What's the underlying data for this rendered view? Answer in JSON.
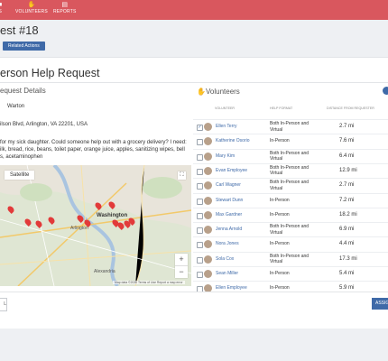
{
  "nav": {
    "items": [
      {
        "label": "S",
        "icon": "briefcase-icon"
      },
      {
        "label": "VOLUNTEERS",
        "icon": "hand-icon"
      },
      {
        "label": "REPORTS",
        "icon": "bar-chart-icon"
      }
    ]
  },
  "header": {
    "title": "est #18",
    "related_actions": "Related Actions"
  },
  "card": {
    "title": "erson Help Request"
  },
  "details": {
    "section_title": "equest Details",
    "name": "Warton",
    "address": "ilson Blvd, Arlington, VA 22201, USA",
    "request_lines": [
      "for my sick daughter. Could someone help out with a grocery delivery? I need:",
      "ilk, bread, rice, beans, toilet paper, orange juice, apples, sanitizing wipes, bell",
      "s, acetaminophen"
    ]
  },
  "map": {
    "satellite_label": "Satellite",
    "city_labels": [
      "Washington",
      "Arlington",
      "Alexandria"
    ],
    "zoom_in": "+",
    "zoom_out": "−",
    "footer": "Map data ©2020   Terms of Use   Report a map error"
  },
  "volunteers": {
    "title": "Volunteers",
    "columns": [
      "VOLUNTEER",
      "HELP FORMAT",
      "DISTANCE FROM REQUESTER"
    ],
    "rows": [
      {
        "name": "Ellen Terry",
        "format": [
          "Both In-Person and",
          "Virtual"
        ],
        "distance": "2.7 mi",
        "checked": true
      },
      {
        "name": "Katherine Osorio",
        "format": [
          "In-Person"
        ],
        "distance": "7.6 mi",
        "checked": false
      },
      {
        "name": "Mary Kim",
        "format": [
          "Both In-Person and",
          "Virtual"
        ],
        "distance": "6.4 mi",
        "checked": false
      },
      {
        "name": "Evan Employee",
        "format": [
          "Both In-Person and",
          "Virtual"
        ],
        "distance": "12.9 mi",
        "checked": false
      },
      {
        "name": "Carl Wagner",
        "format": [
          "Both In-Person and",
          "Virtual"
        ],
        "distance": "2.7 mi",
        "checked": false
      },
      {
        "name": "Stewart Dunn",
        "format": [
          "In-Person"
        ],
        "distance": "7.2 mi",
        "checked": false
      },
      {
        "name": "Max Gardner",
        "format": [
          "In-Person"
        ],
        "distance": "18.2 mi",
        "checked": false
      },
      {
        "name": "Jenna Arnold",
        "format": [
          "Both In-Person and",
          "Virtual"
        ],
        "distance": "6.9 mi",
        "checked": false
      },
      {
        "name": "Nora Jones",
        "format": [
          "In-Person"
        ],
        "distance": "4.4 mi",
        "checked": false
      },
      {
        "name": "Sola Cox",
        "format": [
          "Both In-Person and",
          "Virtual"
        ],
        "distance": "17.3 mi",
        "checked": false
      },
      {
        "name": "Sean Miller",
        "format": [
          "In-Person"
        ],
        "distance": "5.4 mi",
        "checked": false
      },
      {
        "name": "Ellen Employee",
        "format": [
          "In-Person"
        ],
        "distance": "5.9 mi",
        "checked": false
      }
    ]
  },
  "footer": {
    "cancel": "L",
    "assign": "ASSIG"
  },
  "colors": {
    "topbar": "#d9575e",
    "primary": "#3f6aa8",
    "pin": "#e23a3a"
  }
}
